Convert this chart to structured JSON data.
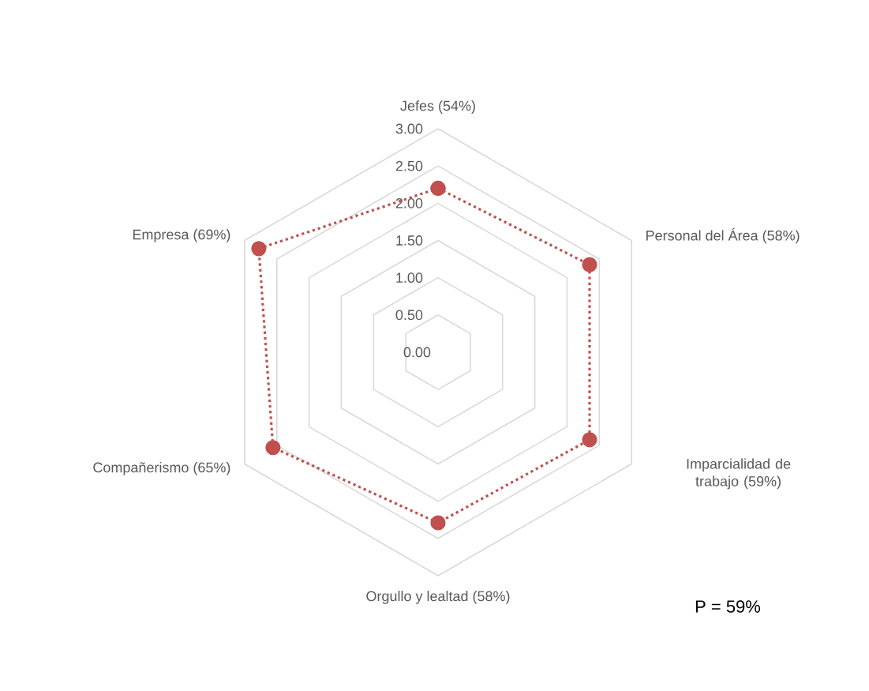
{
  "chart_data": {
    "type": "radar",
    "categories": [
      "Jefes (54%)",
      "Personal del Área (58%)",
      "Imparcialidad de trabajo (59%)",
      "Orgullo y lealtad (58%)",
      "Compañerismo (65%)",
      "Empresa (69%)"
    ],
    "series": [
      {
        "color": "#c0504d",
        "values": [
          2.2,
          2.35,
          2.35,
          2.29,
          2.56,
          2.78
        ]
      }
    ],
    "ylim": [
      0,
      3
    ],
    "yticks": [
      {
        "value": 0,
        "label": "0.00"
      },
      {
        "value": 0.5,
        "label": "0.50"
      },
      {
        "value": 1,
        "label": "1.00"
      },
      {
        "value": 1.5,
        "label": "1.50"
      },
      {
        "value": 2,
        "label": "2.00"
      },
      {
        "value": 2.5,
        "label": "2.50"
      },
      {
        "value": 3,
        "label": "3.00"
      }
    ],
    "grid": true,
    "marker": "circle",
    "line_style": "dotted",
    "annotations": [
      "P = 59%"
    ]
  }
}
